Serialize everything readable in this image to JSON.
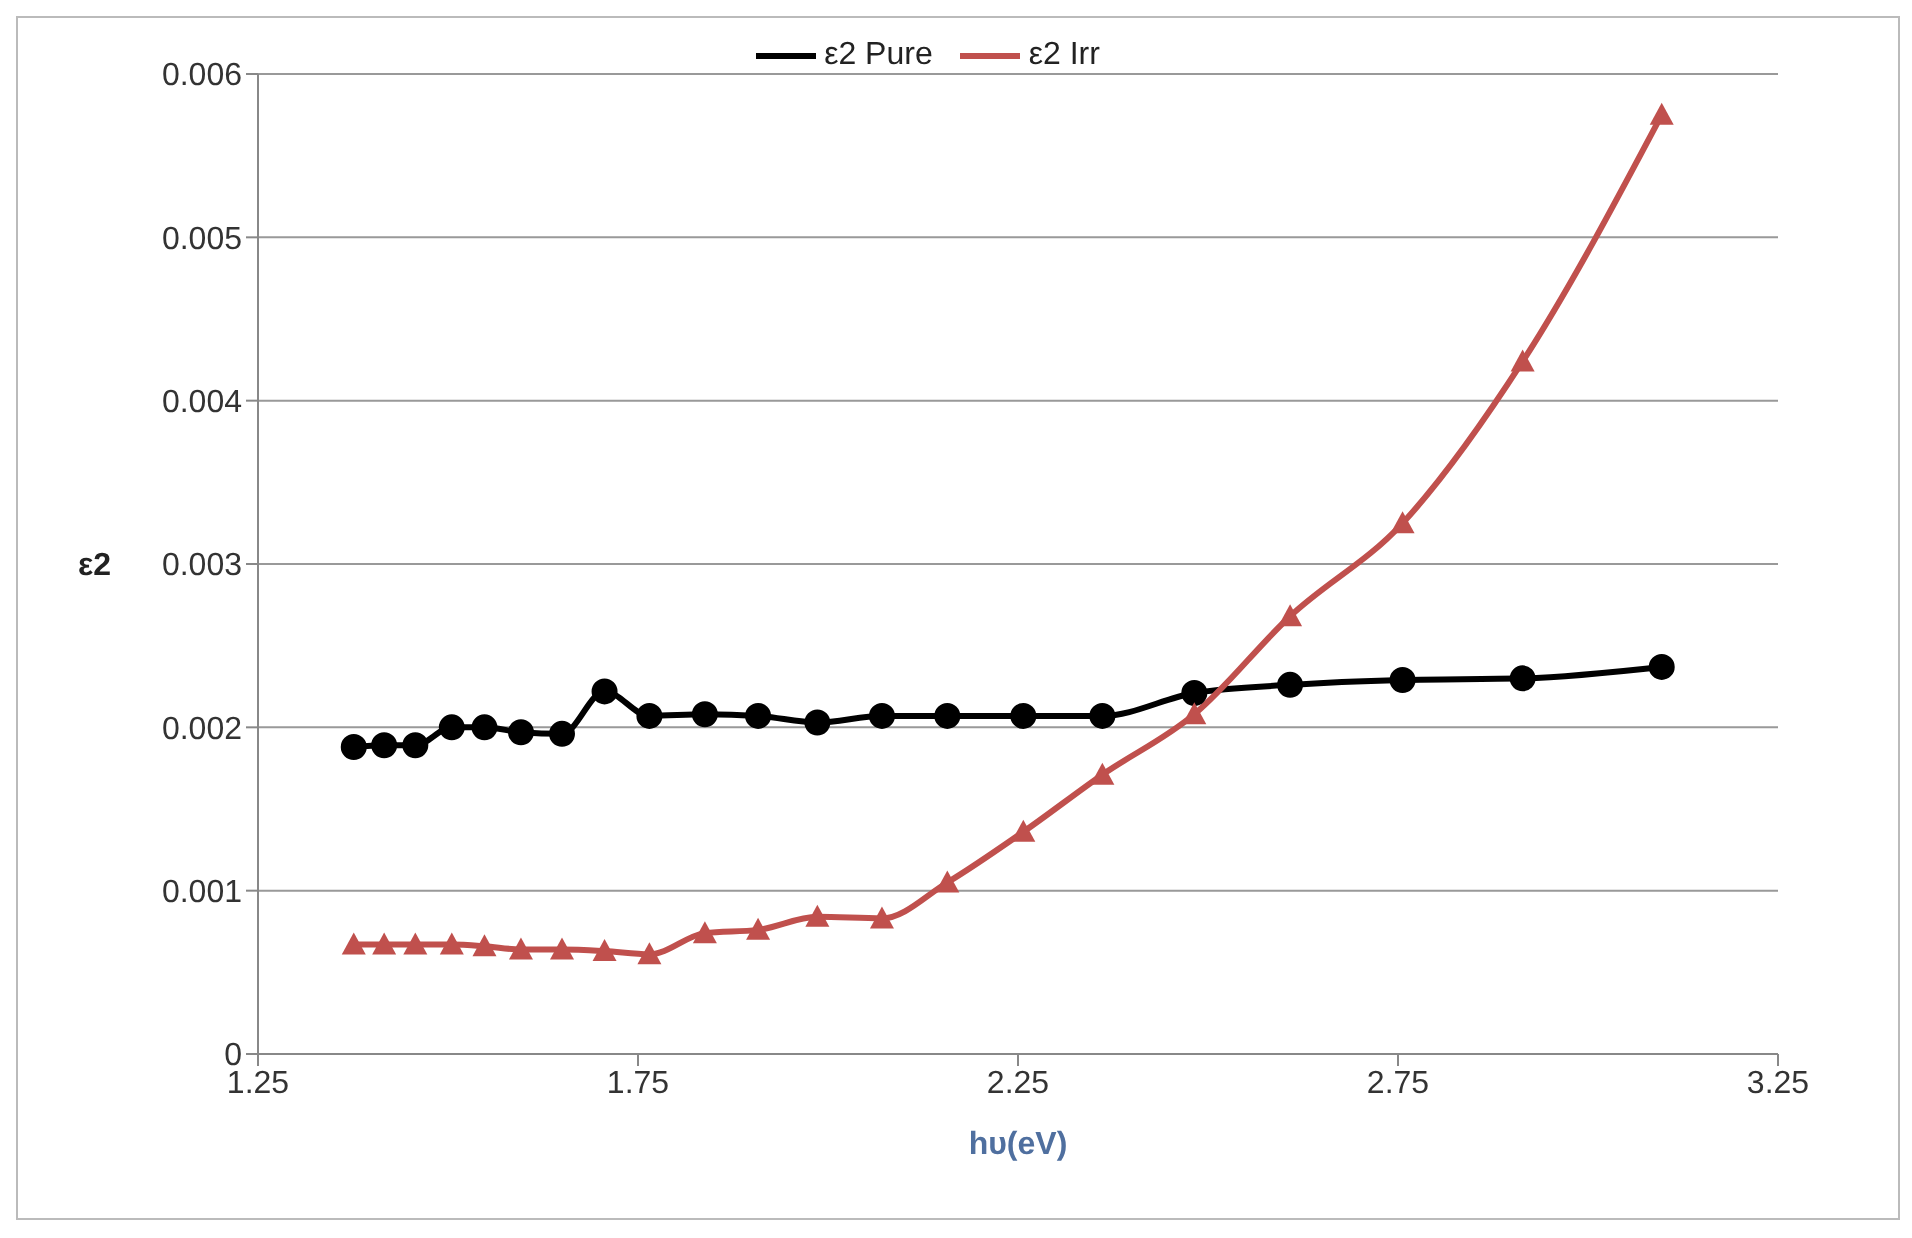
{
  "chart_data": {
    "type": "line",
    "xlabel": "hυ(eV)",
    "ylabel": "ε2",
    "x": [
      1.376,
      1.416,
      1.457,
      1.505,
      1.548,
      1.596,
      1.65,
      1.706,
      1.765,
      1.838,
      1.908,
      1.986,
      2.071,
      2.157,
      2.257,
      2.361,
      2.482,
      2.608,
      2.756,
      2.914,
      3.097
    ],
    "series": [
      {
        "name": "ε2 Pure",
        "color": "#000000",
        "marker": "circle",
        "values": [
          0.00188,
          0.00189,
          0.00189,
          0.002,
          0.002,
          0.00197,
          0.00196,
          0.00222,
          0.00207,
          0.00208,
          0.00207,
          0.00203,
          0.00207,
          0.00207,
          0.00207,
          0.00207,
          0.00221,
          0.00226,
          0.00229,
          0.0023,
          0.00237
        ]
      },
      {
        "name": "ε2 Irr",
        "color": "#c0504d",
        "marker": "triangle",
        "values": [
          0.00067,
          0.00067,
          0.00067,
          0.00067,
          0.00066,
          0.00064,
          0.00064,
          0.00063,
          0.00061,
          0.00074,
          0.00076,
          0.00084,
          0.00083,
          0.00105,
          0.00136,
          0.00171,
          0.00208,
          0.00268,
          0.00325,
          0.00424,
          0.00575
        ]
      }
    ],
    "xlim": [
      1.25,
      3.25
    ],
    "xticks": [
      1.25,
      1.75,
      2.25,
      2.75,
      3.25
    ],
    "ylim": [
      0,
      0.006
    ],
    "yticks": [
      0,
      0.001,
      0.002,
      0.003,
      0.004,
      0.005,
      0.006
    ],
    "grid": "y",
    "legend": "top"
  }
}
